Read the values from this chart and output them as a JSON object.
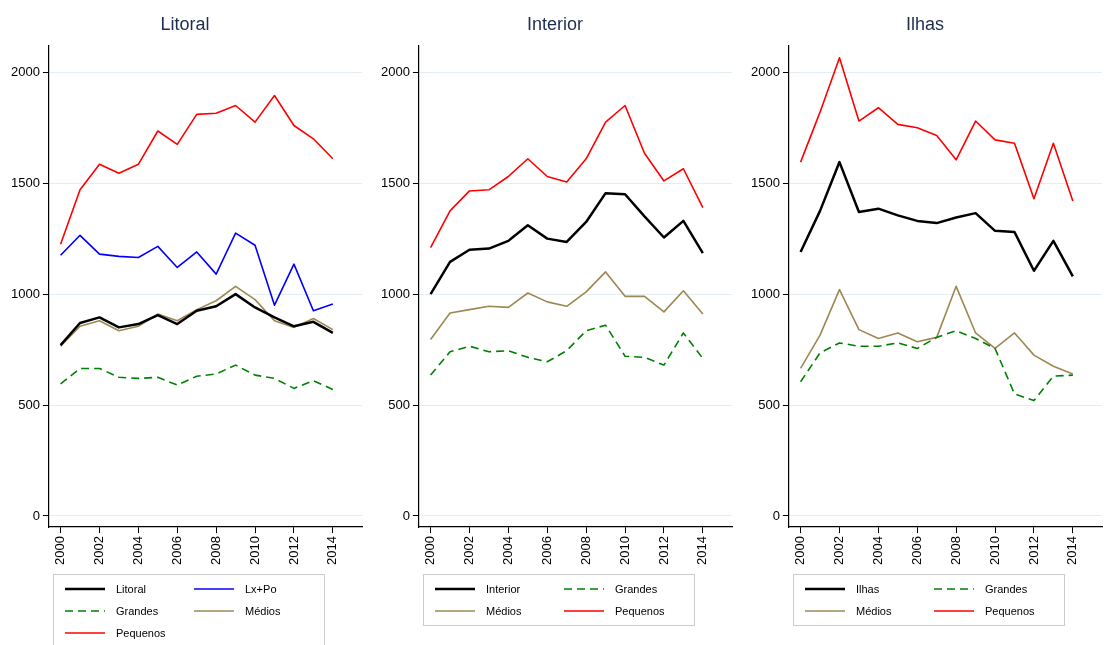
{
  "chart_data": [
    {
      "type": "line",
      "title": "Litoral",
      "x": [
        2000,
        2001,
        2002,
        2003,
        2004,
        2005,
        2006,
        2007,
        2008,
        2009,
        2010,
        2011,
        2012,
        2013,
        2014
      ],
      "xlim": [
        1999.4,
        2015.5
      ],
      "xticks": [
        2000,
        2002,
        2004,
        2006,
        2008,
        2010,
        2012,
        2014
      ],
      "ylim": [
        -50,
        2120
      ],
      "yticks": [
        0,
        500,
        1000,
        1500,
        2000
      ],
      "grid": "y",
      "legend": "bottom",
      "series": [
        {
          "name": "Litoral",
          "color": "#000000",
          "values": [
            770,
            870,
            895,
            850,
            865,
            905,
            865,
            925,
            945,
            1000,
            940,
            895,
            855,
            875,
            825
          ]
        },
        {
          "name": "Lx+Po",
          "color": "#0000ff",
          "values": [
            1175,
            1265,
            1180,
            1170,
            1165,
            1215,
            1120,
            1190,
            1090,
            1275,
            1220,
            950,
            1135,
            925,
            955
          ]
        },
        {
          "name": "Grandes",
          "color": "#008000",
          "line_style": "dashed",
          "values": [
            595,
            665,
            665,
            625,
            620,
            625,
            590,
            630,
            640,
            680,
            635,
            620,
            575,
            610,
            570
          ]
        },
        {
          "name": "Médios",
          "color": "#9c8852",
          "values": [
            765,
            855,
            880,
            835,
            855,
            910,
            880,
            930,
            970,
            1035,
            975,
            880,
            850,
            890,
            840
          ]
        },
        {
          "name": "Pequenos",
          "color": "#ff0000",
          "values": [
            1225,
            1470,
            1585,
            1545,
            1585,
            1735,
            1675,
            1810,
            1815,
            1850,
            1775,
            1895,
            1760,
            1700,
            1610
          ]
        }
      ]
    },
    {
      "type": "line",
      "title": "Interior",
      "x": [
        2000,
        2001,
        2002,
        2003,
        2004,
        2005,
        2006,
        2007,
        2008,
        2009,
        2010,
        2011,
        2012,
        2013,
        2014
      ],
      "xlim": [
        1999.4,
        2015.5
      ],
      "xticks": [
        2000,
        2002,
        2004,
        2006,
        2008,
        2010,
        2012,
        2014
      ],
      "ylim": [
        -50,
        2120
      ],
      "yticks": [
        0,
        500,
        1000,
        1500,
        2000
      ],
      "grid": "y",
      "legend": "bottom",
      "series": [
        {
          "name": "Interior",
          "color": "#000000",
          "values": [
            1000,
            1145,
            1200,
            1205,
            1240,
            1310,
            1250,
            1235,
            1325,
            1455,
            1450,
            1350,
            1255,
            1330,
            1185
          ]
        },
        {
          "name": "Grandes",
          "color": "#008000",
          "line_style": "dashed",
          "values": [
            635,
            740,
            765,
            740,
            745,
            715,
            695,
            745,
            835,
            860,
            720,
            715,
            680,
            825,
            710
          ]
        },
        {
          "name": "Médios",
          "color": "#9c8852",
          "values": [
            795,
            915,
            930,
            945,
            940,
            1005,
            965,
            945,
            1010,
            1100,
            990,
            990,
            920,
            1015,
            910
          ]
        },
        {
          "name": "Pequenos",
          "color": "#ff0000",
          "values": [
            1210,
            1375,
            1465,
            1470,
            1530,
            1610,
            1530,
            1505,
            1610,
            1775,
            1850,
            1635,
            1510,
            1565,
            1390
          ]
        }
      ]
    },
    {
      "type": "line",
      "title": "Ilhas",
      "x": [
        2000,
        2001,
        2002,
        2003,
        2004,
        2005,
        2006,
        2007,
        2008,
        2009,
        2010,
        2011,
        2012,
        2013,
        2014
      ],
      "xlim": [
        1999.4,
        2015.5
      ],
      "xticks": [
        2000,
        2002,
        2004,
        2006,
        2008,
        2010,
        2012,
        2014
      ],
      "ylim": [
        -50,
        2120
      ],
      "yticks": [
        0,
        500,
        1000,
        1500,
        2000
      ],
      "grid": "y",
      "legend": "bottom",
      "series": [
        {
          "name": "Ilhas",
          "color": "#000000",
          "values": [
            1190,
            1375,
            1595,
            1370,
            1385,
            1355,
            1330,
            1320,
            1345,
            1365,
            1285,
            1280,
            1105,
            1240,
            1080
          ]
        },
        {
          "name": "Grandes",
          "color": "#008000",
          "line_style": "dashed",
          "values": [
            605,
            735,
            780,
            765,
            765,
            780,
            755,
            805,
            835,
            800,
            755,
            550,
            520,
            630,
            635
          ]
        },
        {
          "name": "Médios",
          "color": "#9c8852",
          "values": [
            665,
            815,
            1020,
            840,
            800,
            825,
            785,
            805,
            1035,
            825,
            755,
            825,
            725,
            675,
            640
          ]
        },
        {
          "name": "Pequenos",
          "color": "#ff0000",
          "values": [
            1595,
            1820,
            2065,
            1780,
            1840,
            1765,
            1750,
            1715,
            1605,
            1780,
            1695,
            1680,
            1430,
            1680,
            1420
          ]
        }
      ]
    }
  ]
}
